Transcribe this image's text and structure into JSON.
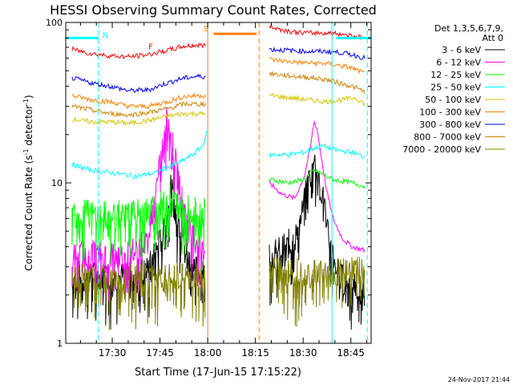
{
  "chart_data": {
    "type": "line",
    "title": "HESSI Observing Summary Count Rates, Corrected",
    "xlabel": "Start Time (17-Jun-15 17:15:22)",
    "ylabel": "Corrected Count Rate (s⁻¹ detector⁻¹)",
    "ylabel_main": "Corrected Count Rate (s",
    "ylabel_sup1": "-1",
    "ylabel_mid": " detector",
    "ylabel_sup2": "-1",
    "ylabel_end": ")",
    "yscale": "log",
    "ylim": [
      1,
      100
    ],
    "xlim_minutes": [
      0,
      96
    ],
    "y_tick_labels": [
      {
        "label": "1",
        "value": 1
      },
      {
        "label": "10",
        "value": 10
      },
      {
        "label": "100",
        "value": 100
      }
    ],
    "x_ticks": [
      {
        "label": "17:30",
        "minute": 14.63
      },
      {
        "label": "17:45",
        "minute": 29.63
      },
      {
        "label": "18:00",
        "minute": 44.63
      },
      {
        "label": "18:15",
        "minute": 59.63
      },
      {
        "label": "18:30",
        "minute": 74.63
      },
      {
        "label": "18:45",
        "minute": 89.63
      }
    ],
    "legend_header": [
      "Det 1,3,5,6,7,9,",
      "Att 0"
    ],
    "legend_position": "right",
    "date_stamp": "24-Nov-2017 21:44",
    "gap_minutes": [
      44.63,
      63.3
    ],
    "series": [
      {
        "name": "3 - 6 keV",
        "color": "#000000",
        "segments": [
          {
            "x": [
              2,
              10,
              20,
              26,
              28,
              30,
              32,
              33,
              35,
              37,
              38,
              40,
              42,
              44
            ],
            "y": [
              2.5,
              2.6,
              2.6,
              2.9,
              3.5,
              4.5,
              6.5,
              9.2,
              6.5,
              4.5,
              3.6,
              3.0,
              2.8,
              2.6
            ]
          },
          {
            "x": [
              64,
              68,
              72,
              74,
              76,
              78,
              79,
              80,
              82,
              84,
              86,
              90,
              94
            ],
            "y": [
              3.5,
              3.8,
              4.5,
              6.0,
              9.5,
              13.5,
              13.0,
              10.0,
              6.0,
              3.6,
              2.6,
              2.3,
              2.1
            ]
          }
        ]
      },
      {
        "name": "6 - 12 keV",
        "color": "#ff00ff",
        "segments": [
          {
            "x": [
              2,
              10,
              20,
              26,
              28,
              30,
              31,
              32,
              33,
              35,
              37,
              39,
              42,
              44
            ],
            "y": [
              3.5,
              3.5,
              3.5,
              4.5,
              8.0,
              14.0,
              20.0,
              28.0,
              20.0,
              12.0,
              7.0,
              5.0,
              4.2,
              3.8
            ]
          },
          {
            "x": [
              64,
              68,
              72,
              75,
              77,
              78,
              79,
              80,
              82,
              84,
              87,
              90,
              94
            ],
            "y": [
              10.0,
              8.5,
              8.0,
              11.0,
              17.0,
              24.0,
              22.0,
              16.0,
              9.0,
              6.0,
              4.5,
              4.0,
              3.8
            ]
          }
        ]
      },
      {
        "name": "12 - 25 keV",
        "color": "#00ff00",
        "segments": [
          {
            "x": [
              2,
              10,
              20,
              28,
              31,
              33,
              35,
              38,
              42,
              44
            ],
            "y": [
              6.5,
              6.3,
              6.2,
              6.8,
              7.5,
              8.0,
              7.4,
              6.8,
              6.5,
              6.5
            ]
          },
          {
            "x": [
              64,
              70,
              75,
              78,
              80,
              84,
              90,
              94
            ],
            "y": [
              10.5,
              10.0,
              10.5,
              12.0,
              11.5,
              10.5,
              10.0,
              9.5
            ]
          }
        ]
      },
      {
        "name": "25 - 50 keV",
        "color": "#00ffff",
        "segments": [
          {
            "x": [
              2,
              8,
              15,
              22,
              28,
              32,
              36,
              40,
              43,
              44.5
            ],
            "y": [
              13.0,
              12.0,
              11.5,
              11.0,
              11.5,
              12.5,
              13.5,
              15.0,
              17.0,
              21.0
            ]
          },
          {
            "x": [
              64,
              70,
              75,
              78,
              81,
              85,
              90,
              94
            ],
            "y": [
              15.0,
              15.0,
              15.5,
              16.5,
              17.0,
              16.0,
              15.5,
              14.5
            ]
          }
        ]
      },
      {
        "name": "50 - 100 keV",
        "color": "#d4c400",
        "segments": [
          {
            "x": [
              2,
              8,
              14,
              20,
              26,
              32,
              37,
              41,
              44
            ],
            "y": [
              25.0,
              24.0,
              24.0,
              23.5,
              24.5,
              26.0,
              27.0,
              27.0,
              27.0
            ]
          },
          {
            "x": [
              64,
              70,
              76,
              82,
              87,
              91,
              94
            ],
            "y": [
              35.0,
              34.0,
              33.0,
              32.0,
              33.0,
              34.0,
              31.0
            ]
          }
        ]
      },
      {
        "name": "100 - 300 keV",
        "color": "#ff8000",
        "segments": [
          {
            "x": [
              2,
              8,
              14,
              20,
              26,
              32,
              37,
              41,
              44
            ],
            "y": [
              35.0,
              33.0,
              32.0,
              30.0,
              30.0,
              32.0,
              34.5,
              35.0,
              35.0
            ]
          },
          {
            "x": [
              64,
              70,
              76,
              82,
              86,
              90,
              94
            ],
            "y": [
              59.0,
              57.0,
              56.0,
              55.5,
              54.0,
              52.0,
              48.0
            ]
          }
        ]
      },
      {
        "name": "300 - 800 keV",
        "color": "#0000ff",
        "segments": [
          {
            "x": [
              2,
              8,
              14,
              20,
              26,
              32,
              37,
              41,
              44
            ],
            "y": [
              45.0,
              42.0,
              40.0,
              37.5,
              38.0,
              42.0,
              45.0,
              46.0,
              46.0
            ]
          },
          {
            "x": [
              64,
              70,
              76,
              82,
              86,
              90,
              94
            ],
            "y": [
              68.0,
              67.0,
              66.0,
              66.0,
              65.0,
              63.0,
              60.0
            ]
          }
        ]
      },
      {
        "name": "800 - 7000 keV",
        "color": "#cc8400",
        "segments": [
          {
            "x": [
              2,
              8,
              14,
              20,
              26,
              32,
              37,
              41,
              44
            ],
            "y": [
              30.0,
              28.5,
              27.0,
              26.5,
              27.5,
              29.0,
              31.0,
              31.0,
              31.0
            ]
          },
          {
            "x": [
              64,
              70,
              76,
              82,
              86,
              90,
              94
            ],
            "y": [
              48.0,
              46.5,
              45.5,
              44.0,
              42.0,
              40.0,
              37.0
            ]
          }
        ]
      },
      {
        "name": "7000 - 20000 keV",
        "color": "#808000",
        "segments": [
          {
            "x": [
              2,
              10,
              20,
              30,
              38,
              44
            ],
            "y": [
              2.5,
              2.5,
              2.5,
              2.6,
              2.5,
              2.5
            ]
          },
          {
            "x": [
              64,
              72,
              80,
              88,
              94
            ],
            "y": [
              2.8,
              2.8,
              2.7,
              2.8,
              2.8
            ]
          }
        ]
      },
      {
        "name": "",
        "color": "#ff0000",
        "segments": [
          {
            "x": [
              2,
              8,
              14,
              20,
              26,
              32,
              37,
              41,
              44
            ],
            "y": [
              68.0,
              64.0,
              62.0,
              61.0,
              63.0,
              67.0,
              71.0,
              72.0,
              72.0
            ]
          },
          {
            "x": [
              64,
              68,
              72,
              76,
              82,
              86,
              90,
              94
            ],
            "y": [
              95.0,
              90.0,
              87.0,
              86.0,
              86.0,
              85.0,
              83.0,
              80.0
            ]
          }
        ]
      }
    ],
    "annotations": [
      {
        "text": "N",
        "color": "#00ffff",
        "minute": 11.5,
        "y": 80
      },
      {
        "text": "F",
        "color": "#ff0000",
        "minute": 26.0,
        "y": 68
      },
      {
        "text": "S",
        "color": "#ff8000",
        "minute": 43.3,
        "y": 88
      }
    ],
    "bars": [
      {
        "name": "night-bar",
        "color": "#00ffff",
        "x": [
          0,
          10.3
        ],
        "y": 80
      },
      {
        "name": "night-bar-2",
        "color": "#00ffff",
        "x": [
          85.0,
          96
        ],
        "y": 80
      },
      {
        "name": "saa-bar",
        "color": "#ff8000",
        "x": [
          46.5,
          60.0
        ],
        "y": 85
      }
    ],
    "vlines": [
      {
        "name": "night-end-line",
        "color": "#00ffff",
        "minute": 10.3,
        "style": "dashed"
      },
      {
        "name": "saa-start-line",
        "color": "#ff8000",
        "minute": 44.63,
        "style": "solid"
      },
      {
        "name": "saa-end-line",
        "color": "#ff8000",
        "minute": 60.8,
        "style": "dashed"
      },
      {
        "name": "night-start-line",
        "color": "#00ffff",
        "minute": 83.7,
        "style": "solid"
      },
      {
        "name": "night-end-line-2",
        "color": "#00ffff",
        "minute": 94.8,
        "style": "dashed"
      }
    ]
  }
}
